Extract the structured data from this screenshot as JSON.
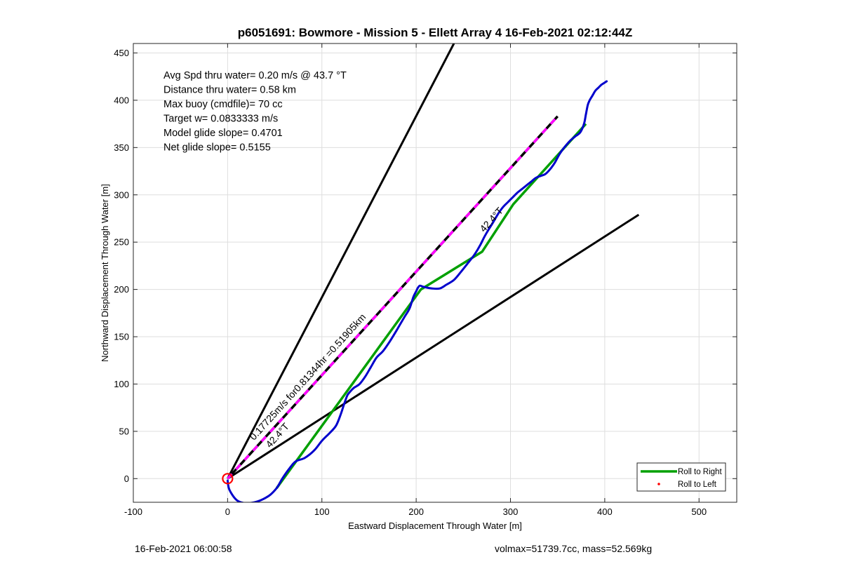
{
  "chart_data": {
    "type": "line",
    "title": "p6051691: Bowmore - Mission 5 - Ellett Array 4 16-Feb-2021 02:12:44Z",
    "xlabel": "Eastward Displacement Through Water [m]",
    "ylabel": "Northward Displacement Through Water [m]",
    "xlim": [
      -100,
      540
    ],
    "ylim": [
      -25,
      460
    ],
    "x_ticks": [
      -100,
      0,
      100,
      200,
      300,
      400,
      500
    ],
    "y_ticks": [
      0,
      50,
      100,
      150,
      200,
      250,
      300,
      350,
      400,
      450
    ],
    "grid": true,
    "legend_position": "bottom-right",
    "legend": [
      {
        "label": "Roll to Right",
        "color": "#00a000",
        "marker": "line"
      },
      {
        "label": "Roll to Left",
        "color": "#ff0000",
        "marker": "dot"
      }
    ],
    "info_lines": [
      "Avg Spd thru water=  0.20 m/s @  43.7 °T",
      "Distance thru water=  0.58 km",
      "Max buoy (cmdfile)= 70 cc",
      "Target w= 0.0833333 m/s",
      "Model glide slope= 0.4701",
      "Net glide slope= 0.5155"
    ],
    "annotations": [
      {
        "text": "0.17725m/s for0.81344hr =0.51905km",
        "x": 28,
        "y": 40
      },
      {
        "text": "42.4°T",
        "x": 272,
        "y": 260
      },
      {
        "text": "42.4°T",
        "x": 45,
        "y": 32
      }
    ],
    "series": [
      {
        "role": "cone-left",
        "color": "#000000",
        "x": [
          0,
          240
        ],
        "y": [
          0,
          460
        ]
      },
      {
        "role": "cone-right",
        "color": "#000000",
        "x": [
          0,
          436
        ],
        "y": [
          0,
          279
        ]
      },
      {
        "role": "heading-dashed",
        "color": "#000000",
        "dash_color": "#ff00ff",
        "x": [
          0,
          350
        ],
        "y": [
          0,
          383
        ]
      },
      {
        "role": "roll-to-right",
        "color": "#00a000",
        "x": [
          52,
          125,
          205,
          270,
          303,
          380
        ],
        "y": [
          -10,
          90,
          200,
          240,
          290,
          375
        ]
      },
      {
        "role": "track",
        "color": "#0000cc",
        "x": [
          0,
          2,
          10,
          20,
          32,
          44,
          52,
          58,
          65,
          72,
          82,
          92,
          100,
          108,
          115,
          120,
          124,
          127,
          130,
          134,
          140,
          146,
          152,
          158,
          165,
          172,
          180,
          187,
          193,
          197,
          200,
          202,
          204,
          207,
          211,
          217,
          225,
          232,
          240,
          247,
          255,
          262,
          268,
          272,
          276,
          281,
          287,
          292,
          297,
          302,
          307,
          312,
          317,
          322,
          327,
          332,
          337,
          342,
          347,
          352,
          357,
          363,
          369,
          374,
          378,
          380,
          382,
          384,
          387,
          390,
          393,
          396,
          399,
          402
        ],
        "y": [
          -2,
          -12,
          -23,
          -26,
          -24,
          -18,
          -10,
          0,
          10,
          18,
          22,
          30,
          40,
          48,
          56,
          68,
          80,
          88,
          92,
          96,
          100,
          108,
          118,
          128,
          135,
          145,
          158,
          170,
          180,
          192,
          198,
          202,
          204,
          203,
          202,
          201,
          201,
          205,
          210,
          218,
          228,
          237,
          247,
          255,
          262,
          270,
          280,
          287,
          292,
          297,
          302,
          306,
          310,
          314,
          318,
          320,
          322,
          327,
          334,
          343,
          350,
          357,
          362,
          366,
          375,
          385,
          395,
          400,
          405,
          410,
          413,
          416,
          418,
          420
        ]
      }
    ],
    "start_marker": {
      "x": 0,
      "y": 0,
      "color": "#ff0000"
    }
  },
  "footer": {
    "left": "16-Feb-2021 06:00:58",
    "right": "volmax=51739.7cc, mass=52.569kg"
  }
}
